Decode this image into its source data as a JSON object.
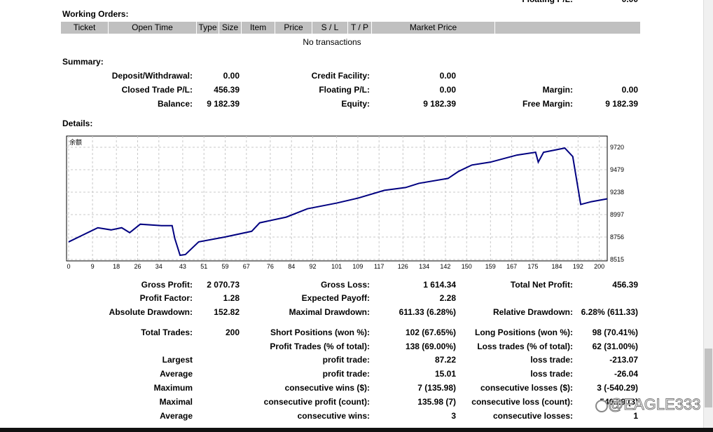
{
  "top_partial": {
    "label": "Floating P/L:",
    "value": "0.00"
  },
  "working_orders": {
    "title": "Working Orders:",
    "columns": [
      "Ticket",
      "Open Time",
      "Type",
      "Size",
      "Item",
      "Price",
      "S / L",
      "T / P",
      "Market Price"
    ],
    "empty": "No transactions"
  },
  "summary": {
    "title": "Summary:",
    "rows": [
      [
        [
          "Deposit/Withdrawal:",
          "0.00"
        ],
        [
          "Credit Facility:",
          "0.00"
        ],
        null
      ],
      [
        [
          "Closed Trade P/L:",
          "456.39"
        ],
        [
          "Floating P/L:",
          "0.00"
        ],
        [
          "Margin:",
          "0.00"
        ]
      ],
      [
        [
          "Balance:",
          "9 182.39"
        ],
        [
          "Equity:",
          "9 182.39"
        ],
        [
          "Free Margin:",
          "9 182.39"
        ]
      ]
    ]
  },
  "details": {
    "title": "Details:",
    "rows": [
      [
        [
          "Gross Profit:",
          "2 070.73"
        ],
        [
          "Gross Loss:",
          "1 614.34"
        ],
        [
          "Total Net Profit:",
          "456.39"
        ]
      ],
      [
        [
          "Profit Factor:",
          "1.28"
        ],
        [
          "Expected Payoff:",
          "2.28"
        ],
        null
      ],
      [
        [
          "Absolute Drawdown:",
          "152.82"
        ],
        [
          "Maximal Drawdown:",
          "611.33 (6.28%)"
        ],
        [
          "Relative Drawdown:",
          "6.28% (611.33)"
        ]
      ],
      [
        [
          "Total Trades:",
          "200"
        ],
        [
          "Short Positions (won %):",
          "102 (67.65%)"
        ],
        [
          "Long Positions (won %):",
          "98 (70.41%)"
        ]
      ],
      [
        null,
        [
          "Profit Trades (% of total):",
          "138 (69.00%)"
        ],
        [
          "Loss trades (% of total):",
          "62 (31.00%)"
        ]
      ],
      [
        [
          "Largest",
          null
        ],
        [
          "profit trade:",
          "87.22"
        ],
        [
          "loss trade:",
          "-213.07"
        ]
      ],
      [
        [
          "Average",
          null
        ],
        [
          "profit trade:",
          "15.01"
        ],
        [
          "loss trade:",
          "-26.04"
        ]
      ],
      [
        [
          "Maximum",
          null
        ],
        [
          "consecutive wins ($):",
          "7 (135.98)"
        ],
        [
          "consecutive losses ($):",
          "3 (-540.29)"
        ]
      ],
      [
        [
          "Maximal",
          null
        ],
        [
          "consecutive profit (count):",
          "135.98 (7)"
        ],
        [
          "consecutive loss (count):",
          "540.29 (3)"
        ]
      ],
      [
        [
          "Average",
          null
        ],
        [
          "consecutive wins:",
          "3"
        ],
        [
          "consecutive losses:",
          "1"
        ]
      ]
    ]
  },
  "chart_data": {
    "type": "line",
    "label": "余额",
    "x": [
      0,
      5,
      11,
      16,
      20,
      23,
      27,
      35,
      39,
      40,
      42,
      44,
      49,
      59,
      69,
      72,
      82,
      90,
      101,
      109,
      119,
      127,
      132,
      143,
      147,
      152,
      159,
      169,
      176,
      177,
      179,
      187,
      190,
      193,
      197,
      203
    ],
    "series": [
      {
        "name": "余额",
        "color": "#000080",
        "values": [
          8704,
          8773,
          8856,
          8833,
          8856,
          8803,
          8894,
          8879,
          8879,
          8742,
          8560,
          8568,
          8704,
          8757,
          8818,
          8909,
          8970,
          9060,
          9121,
          9174,
          9258,
          9288,
          9333,
          9386,
          9462,
          9530,
          9561,
          9637,
          9667,
          9561,
          9667,
          9712,
          9621,
          9106,
          9136,
          9167
        ]
      }
    ],
    "xlim": [
      0,
      203
    ],
    "xticks": [
      0,
      9,
      18,
      26,
      34,
      43,
      51,
      59,
      67,
      76,
      84,
      92,
      101,
      109,
      117,
      126,
      134,
      142,
      150,
      159,
      167,
      175,
      184,
      192,
      200
    ],
    "ylim": [
      8500,
      9841
    ],
    "yticks": [
      8515,
      8756,
      8997,
      9238,
      9479,
      9720
    ],
    "grid": true
  },
  "watermark": "@EAGLE333"
}
